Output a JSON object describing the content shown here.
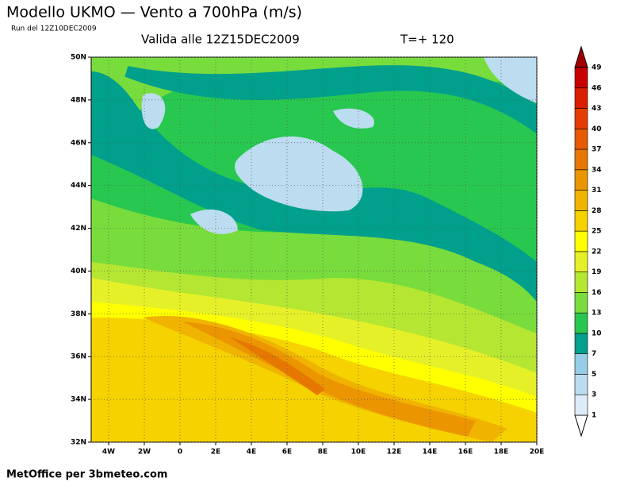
{
  "header": {
    "title": "Modello UKMO — Vento a 700hPa (m/s)",
    "run": "Run del 12Z10DEC2009",
    "valid": "Valida alle 12Z15DEC2009",
    "step": "T=+ 120"
  },
  "map": {
    "lon_ticks": [
      "4W",
      "2W",
      "0",
      "2E",
      "4E",
      "6E",
      "8E",
      "10E",
      "12E",
      "14E",
      "16E",
      "18E",
      "20E"
    ],
    "lat_ticks": [
      "32N",
      "34N",
      "36N",
      "38N",
      "40N",
      "42N",
      "44N",
      "46N",
      "48N",
      "50N"
    ]
  },
  "colorbar": {
    "levels": [
      1,
      3,
      5,
      7,
      10,
      13,
      16,
      19,
      22,
      25,
      28,
      31,
      34,
      37,
      40,
      43,
      46,
      49
    ],
    "colors": [
      "#ffffff",
      "#dcecf8",
      "#bcdcf0",
      "#96cce6",
      "#00a08c",
      "#28c850",
      "#78dc3c",
      "#b4e632",
      "#e6f028",
      "#ffff00",
      "#f5d200",
      "#f0b400",
      "#eb9600",
      "#e67800",
      "#e65a00",
      "#e63c00",
      "#dc1e00",
      "#c80000",
      "#a00000"
    ]
  },
  "footer": "MetOffice per 3bmeteo.com"
}
